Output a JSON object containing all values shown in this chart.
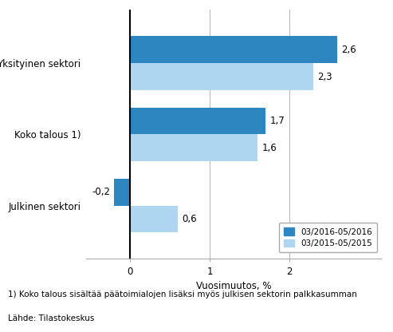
{
  "categories": [
    "Julkinen sektori",
    "Koko talous 1)",
    "Yksityinen sektori"
  ],
  "series_2016": [
    -0.2,
    1.7,
    2.6
  ],
  "series_2015": [
    0.6,
    1.6,
    2.3
  ],
  "color_2016": "#2E86C1",
  "color_2015": "#AED6F1",
  "xlabel": "Vuosimuutos, %",
  "legend_2016": "03/2016-05/2016",
  "legend_2015": "03/2015-05/2015",
  "xlim": [
    -0.55,
    3.15
  ],
  "xticks": [
    0,
    1,
    2
  ],
  "footnote1": "1) Koko talous sisältää päätoimialojen lisäksi myös julkisen sektorin palkkasumman",
  "footnote2": "Lähde: Tilastokeskus",
  "bar_height": 0.38,
  "label_fontsize": 8.5,
  "tick_fontsize": 8.5,
  "xlabel_fontsize": 8.5,
  "footnote_fontsize": 7.5,
  "ytick_fontsize": 8.5
}
